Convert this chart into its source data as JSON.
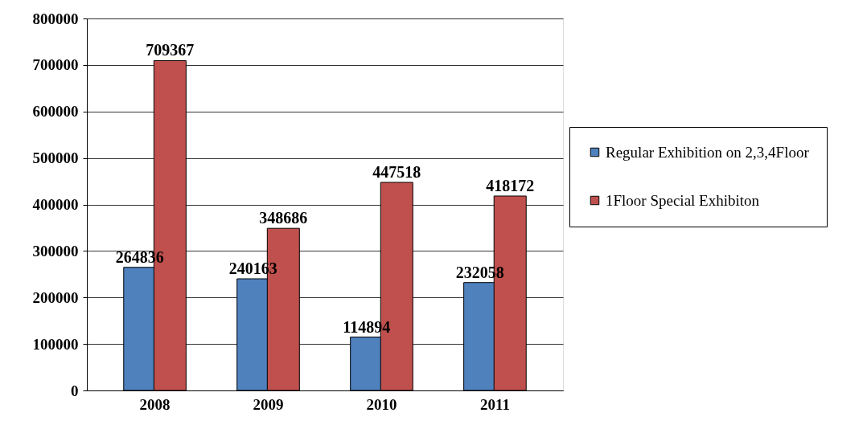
{
  "chart_data": {
    "type": "bar",
    "categories": [
      "2008",
      "2009",
      "2010",
      "2011"
    ],
    "series": [
      {
        "name": "Regular Exhibition on 2,3,4Floor",
        "color": "#4f81bd",
        "values": [
          264836,
          240163,
          114894,
          232058
        ]
      },
      {
        "name": "1Floor Special Exhibiton",
        "color": "#c0504d",
        "values": [
          709367,
          348686,
          447518,
          418172
        ]
      }
    ],
    "ylim": [
      0,
      800000
    ],
    "yticks": [
      0,
      100000,
      200000,
      300000,
      400000,
      500000,
      600000,
      700000,
      800000
    ],
    "grid": "y",
    "legend": "right",
    "data_labels": true
  }
}
